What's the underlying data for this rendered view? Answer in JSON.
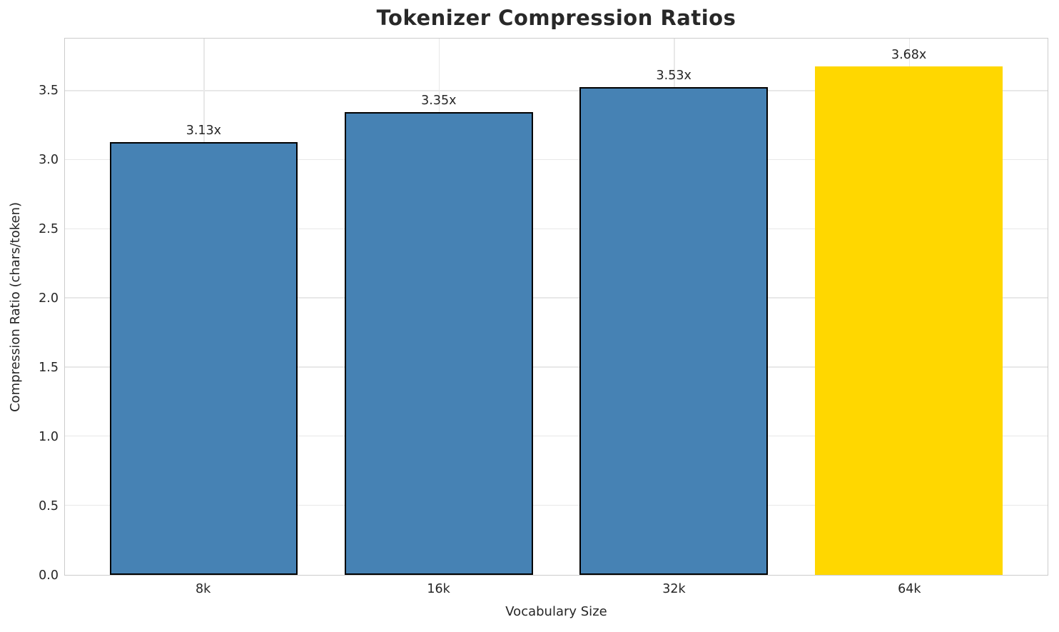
{
  "chart_data": {
    "type": "bar",
    "title": "Tokenizer Compression Ratios",
    "xlabel": "Vocabulary Size",
    "ylabel": "Compression Ratio (chars/token)",
    "categories": [
      "8k",
      "16k",
      "32k",
      "64k"
    ],
    "values": [
      3.13,
      3.35,
      3.53,
      3.68
    ],
    "bar_labels": [
      "3.13x",
      "3.35x",
      "3.53x",
      "3.68x"
    ],
    "bar_colors": [
      "#4682B4",
      "#4682B4",
      "#4682B4",
      "#FFD700"
    ],
    "bar_edge_colors": [
      "#000000",
      "#000000",
      "#000000",
      "none"
    ],
    "highlight_index": 3,
    "ylim": [
      0,
      3.88
    ],
    "yticks": [
      0.0,
      0.5,
      1.0,
      1.5,
      2.0,
      2.5,
      3.0,
      3.5
    ],
    "ytick_labels": [
      "0.0",
      "0.5",
      "1.0",
      "1.5",
      "2.0",
      "2.5",
      "3.0",
      "3.5"
    ],
    "xlim": [
      -0.59,
      3.59
    ],
    "bar_width": 0.8,
    "grid": true,
    "legend": "none"
  },
  "colors": {
    "background": "#ffffff",
    "bar_default": "#4682B4",
    "bar_highlight": "#FFD700",
    "bar_edge": "#000000",
    "grid": "#e8e8e8",
    "spine": "#cccccc",
    "text": "#262626",
    "title_text": "#282828"
  }
}
